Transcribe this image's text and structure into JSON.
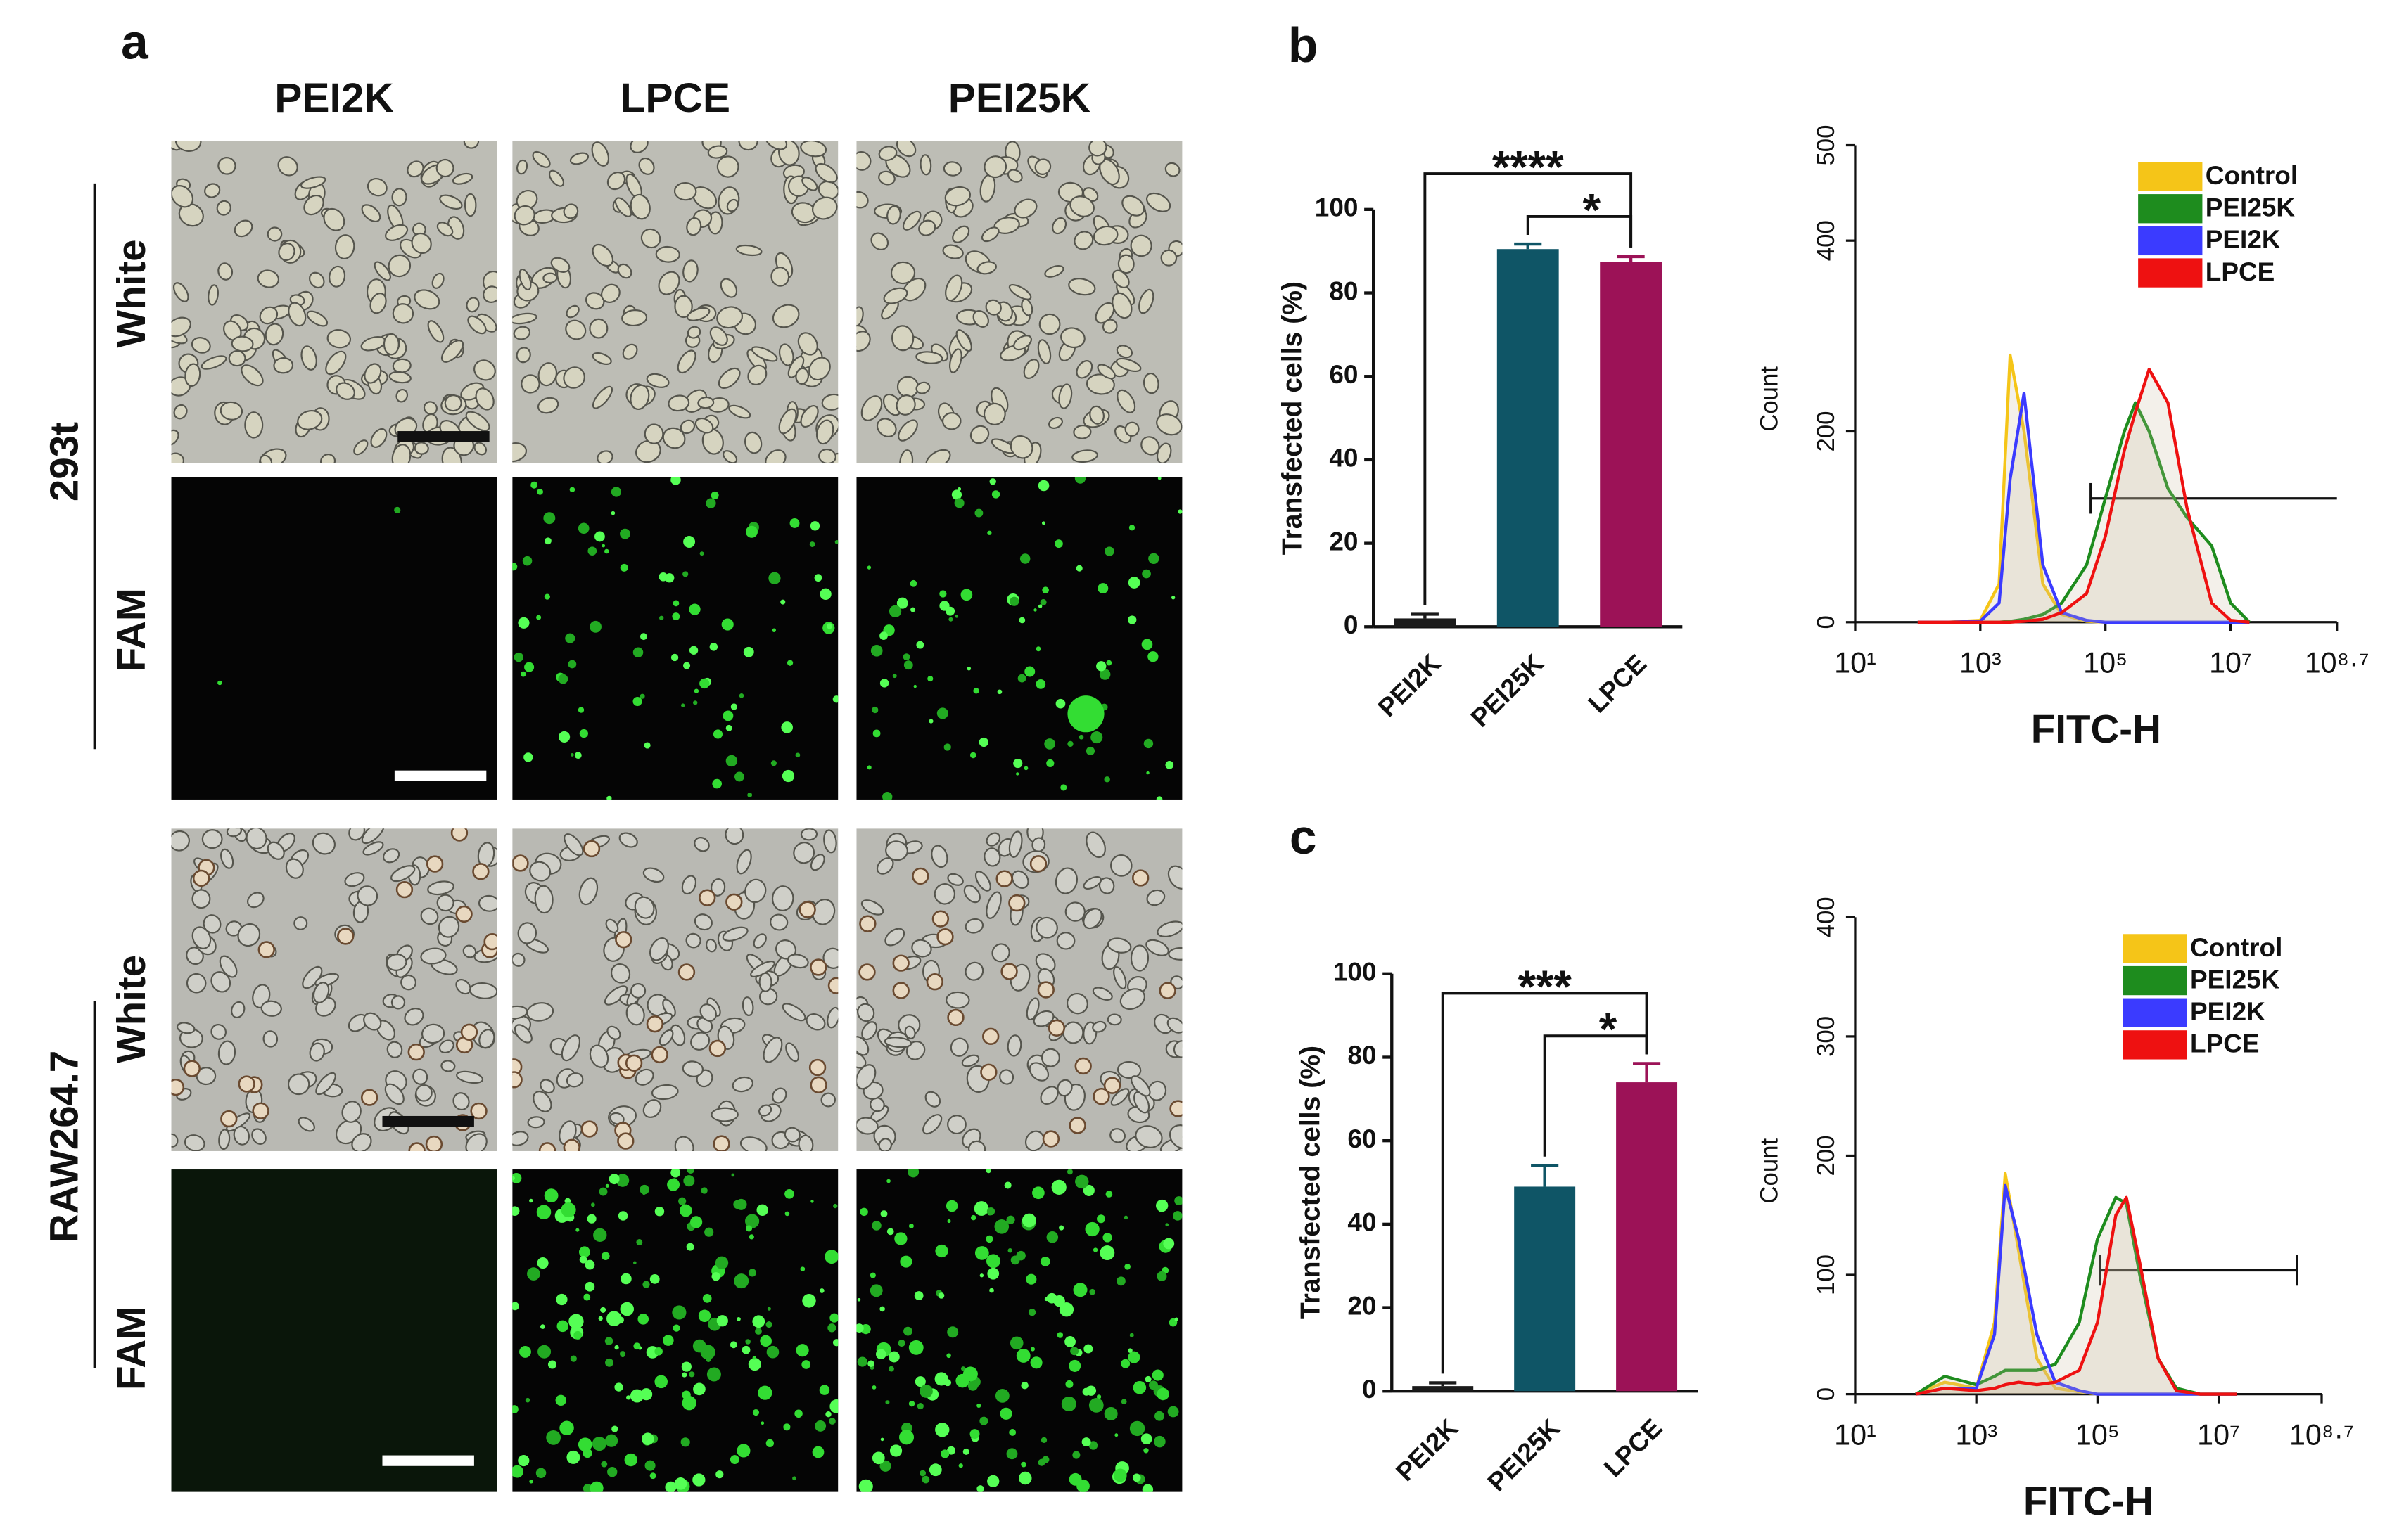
{
  "panels": {
    "label": "a",
    "columns": [
      "PEI2K",
      "LPCE",
      "PEI25K"
    ],
    "cell_lines": [
      "293t",
      "RAW264.7"
    ],
    "channels": [
      "White",
      "FAM"
    ]
  },
  "chart_data": [
    {
      "type": "bar",
      "panel": "b",
      "ylabel": "Transfected cells (%)",
      "categories": [
        "PEI2K",
        "PEI25K",
        "LPCE"
      ],
      "values": [
        2,
        90.5,
        87.5
      ],
      "errors": [
        1,
        1.2,
        1.2
      ],
      "colors": [
        "#1a1a1a",
        "#0f5566",
        "#9c1257"
      ],
      "ylim": [
        0,
        100
      ],
      "yticks": [
        0,
        20,
        40,
        60,
        80,
        100
      ],
      "annotations": [
        "****",
        "*"
      ]
    },
    {
      "type": "histogram-line",
      "xlabel": "FITC-H",
      "ylabel": "Count",
      "log_x": true,
      "legend": "top-right",
      "x": [
        100,
        300,
        1000,
        2000,
        3000,
        5000,
        10000,
        20000,
        50000,
        100000,
        200000,
        300000,
        500000,
        1000000,
        2000000,
        5000000,
        10000000,
        20000000
      ],
      "series": [
        {
          "name": "Control",
          "color": "#f5c518",
          "values": [
            0,
            0,
            2,
            40,
            280,
            200,
            40,
            8,
            1,
            0,
            0,
            0,
            0,
            0,
            0,
            0,
            0,
            0
          ]
        },
        {
          "name": "PEI25K",
          "color": "#1e8c1e",
          "values": [
            0,
            0,
            0,
            0,
            1,
            3,
            8,
            20,
            60,
            130,
            200,
            230,
            200,
            140,
            110,
            80,
            20,
            0
          ]
        },
        {
          "name": "PEI2K",
          "color": "#3b3bff",
          "values": [
            0,
            0,
            1,
            20,
            150,
            240,
            60,
            10,
            2,
            0,
            0,
            0,
            0,
            0,
            0,
            0,
            0,
            0
          ]
        },
        {
          "name": "LPCE",
          "color": "#ee1111",
          "values": [
            0,
            0,
            0,
            0,
            0,
            1,
            3,
            10,
            30,
            90,
            180,
            220,
            265,
            230,
            120,
            20,
            2,
            0
          ]
        }
      ],
      "xlim": [
        10,
        501187234
      ],
      "xticks": [
        {
          "value": 10,
          "label": "10¹"
        },
        {
          "value": 1000,
          "label": "10³"
        },
        {
          "value": 100000,
          "label": "10⁵"
        },
        {
          "value": 10000000,
          "label": "10⁷"
        },
        {
          "value": 501187234,
          "label": "10⁸·⁷"
        }
      ],
      "ylim": [
        0,
        500
      ],
      "yticks": [
        0,
        200,
        400,
        500
      ]
    },
    {
      "type": "bar",
      "panel": "c",
      "ylabel": "Transfected cells (%)",
      "categories": [
        "PEI2K",
        "PEI25K",
        "LPCE"
      ],
      "values": [
        1.2,
        49,
        74
      ],
      "errors": [
        0.8,
        5,
        4.5
      ],
      "colors": [
        "#1a1a1a",
        "#0f5566",
        "#9c1257"
      ],
      "ylim": [
        0,
        100
      ],
      "yticks": [
        0,
        20,
        40,
        60,
        80,
        100
      ],
      "annotations": [
        "***",
        "*"
      ]
    },
    {
      "type": "histogram-line",
      "xlabel": "FITC-H",
      "ylabel": "Count",
      "log_x": true,
      "legend": "top-right",
      "x": [
        100,
        300,
        1000,
        2000,
        3000,
        5000,
        10000,
        20000,
        50000,
        100000,
        200000,
        300000,
        500000,
        1000000,
        2000000,
        5000000,
        10000000,
        20000000
      ],
      "series": [
        {
          "name": "Control",
          "color": "#f5c518",
          "values": [
            0,
            10,
            5,
            60,
            185,
            120,
            30,
            5,
            2,
            0,
            0,
            0,
            0,
            0,
            0,
            0,
            0,
            0
          ]
        },
        {
          "name": "PEI25K",
          "color": "#1e8c1e",
          "values": [
            0,
            15,
            8,
            15,
            20,
            20,
            20,
            25,
            60,
            130,
            165,
            160,
            100,
            30,
            5,
            0,
            0,
            0
          ]
        },
        {
          "name": "PEI2K",
          "color": "#3b3bff",
          "values": [
            0,
            5,
            5,
            50,
            175,
            130,
            50,
            10,
            3,
            0,
            0,
            0,
            0,
            0,
            0,
            0,
            0,
            0
          ]
        },
        {
          "name": "LPCE",
          "color": "#ee1111",
          "values": [
            0,
            5,
            3,
            5,
            8,
            10,
            8,
            10,
            20,
            60,
            150,
            165,
            110,
            30,
            3,
            0,
            0,
            0
          ]
        }
      ],
      "xlim": [
        10,
        501187234
      ],
      "xticks": [
        {
          "value": 10,
          "label": "10¹"
        },
        {
          "value": 1000,
          "label": "10³"
        },
        {
          "value": 100000,
          "label": "10⁵"
        },
        {
          "value": 10000000,
          "label": "10⁷"
        },
        {
          "value": 501187234,
          "label": "10⁸·⁷"
        }
      ],
      "ylim": [
        0,
        400
      ],
      "yticks": [
        0,
        100,
        200,
        300,
        400
      ]
    }
  ]
}
